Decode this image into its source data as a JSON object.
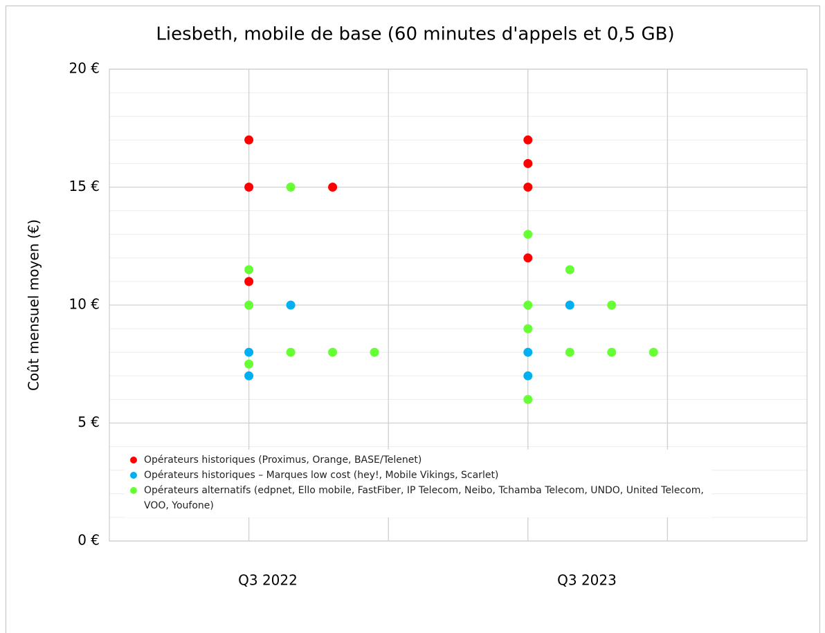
{
  "chart_data": {
    "type": "scatter",
    "title": "Liesbeth, mobile de base (60 minutes d'appels et 0,5 GB)",
    "y_label": "Coût mensuel moyen (€)",
    "period_labels": [
      "Q3 2022",
      "Q3 2023"
    ],
    "xlim": [
      0,
      5
    ],
    "xticks": [
      1,
      2,
      3,
      4
    ],
    "ylim": [
      0,
      20
    ],
    "yticks": [
      {
        "value": 0,
        "label": "0 €"
      },
      {
        "value": 5,
        "label": "5 €"
      },
      {
        "value": 10,
        "label": "10 €"
      },
      {
        "value": 15,
        "label": "15 €"
      },
      {
        "value": 20,
        "label": "20 €"
      }
    ],
    "y_minor_ticks": [
      1,
      2,
      3,
      4,
      6,
      7,
      8,
      9,
      11,
      12,
      13,
      14,
      16,
      17,
      18,
      19
    ],
    "grid": true,
    "series": [
      {
        "name": "Opérateurs historiques (Proximus, Orange, BASE/Telenet)",
        "color": "#ff0000",
        "x": [
          1,
          1,
          1.6,
          1,
          3,
          3,
          3,
          3
        ],
        "values": [
          17,
          15,
          15,
          11,
          17,
          16,
          15,
          12
        ]
      },
      {
        "name": "Opérateurs historiques – Marques low cost (hey!, Mobile Vikings, Scarlet)",
        "color": "#00b0f0",
        "x": [
          1,
          1,
          1.3,
          3,
          3,
          3.3
        ],
        "values": [
          8,
          7,
          10,
          8,
          7,
          10
        ]
      },
      {
        "name": "Opérateurs alternatifs (edpnet, Ello mobile, FastFiber, IP Telecom, Neibo, Tchamba Telecom, UNDO, United Telecom, VOO, Youfone)",
        "color": "#66ff33",
        "x": [
          1.3,
          1,
          1,
          1.3,
          1.6,
          1.9,
          1,
          3,
          3.3,
          3,
          3.6,
          3,
          3.3,
          3.6,
          3.9,
          3
        ],
        "values": [
          15,
          11.5,
          10,
          8,
          8,
          8,
          7.5,
          13,
          11.5,
          10,
          10,
          9,
          8,
          8,
          8,
          6
        ]
      }
    ]
  }
}
